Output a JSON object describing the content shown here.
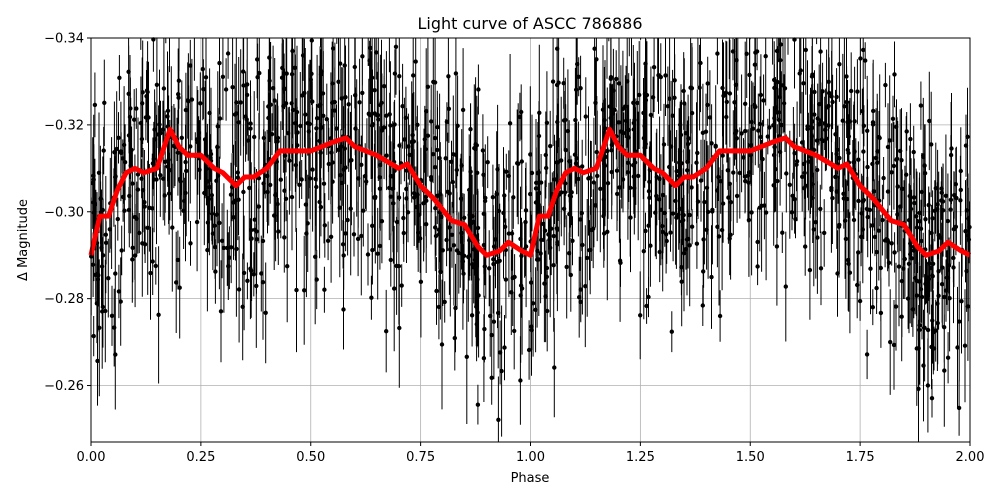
{
  "chart_data": {
    "type": "scatter",
    "title": "Light curve of ASCC 786886",
    "xlabel": "Phase",
    "ylabel": "Δ Magnitude",
    "xlim": [
      0.0,
      2.0
    ],
    "ylim": [
      -0.34,
      -0.247
    ],
    "y_inverted": true,
    "grid": true,
    "xticks": [
      "0.00",
      "0.25",
      "0.50",
      "0.75",
      "1.00",
      "1.25",
      "1.50",
      "1.75",
      "2.00"
    ],
    "yticks": [
      "−0.34",
      "−0.32",
      "−0.30",
      "−0.28",
      "−0.26"
    ],
    "series": [
      {
        "name": "observations",
        "style": "black points with error bars",
        "color": "#000000",
        "description": "Dense phase-folded photometry, scatter spanning roughly -0.34 to -0.25 magnitude across all phases"
      },
      {
        "name": "binned mean",
        "style": "thick red line",
        "color": "#ff0000",
        "x": [
          0.0,
          0.02,
          0.04,
          0.06,
          0.08,
          0.1,
          0.12,
          0.15,
          0.17,
          0.18,
          0.2,
          0.22,
          0.25,
          0.28,
          0.3,
          0.33,
          0.35,
          0.37,
          0.4,
          0.43,
          0.47,
          0.5,
          0.55,
          0.58,
          0.6,
          0.65,
          0.7,
          0.72,
          0.75,
          0.78,
          0.82,
          0.85,
          0.88,
          0.9,
          0.93,
          0.95,
          0.98,
          1.0,
          1.02,
          1.04,
          1.06,
          1.08,
          1.1,
          1.12,
          1.15,
          1.17,
          1.18,
          1.2,
          1.22,
          1.25,
          1.28,
          1.3,
          1.33,
          1.35,
          1.37,
          1.4,
          1.43,
          1.47,
          1.5,
          1.55,
          1.58,
          1.6,
          1.65,
          1.7,
          1.72,
          1.75,
          1.78,
          1.82,
          1.85,
          1.88,
          1.9,
          1.93,
          1.95,
          1.98,
          2.0
        ],
        "values": [
          -0.29,
          -0.299,
          -0.299,
          -0.305,
          -0.309,
          -0.31,
          -0.309,
          -0.31,
          -0.316,
          -0.319,
          -0.315,
          -0.313,
          -0.313,
          -0.31,
          -0.309,
          -0.306,
          -0.308,
          -0.308,
          -0.31,
          -0.314,
          -0.314,
          -0.314,
          -0.316,
          -0.317,
          -0.315,
          -0.313,
          -0.31,
          -0.311,
          -0.306,
          -0.303,
          -0.298,
          -0.297,
          -0.292,
          -0.29,
          -0.291,
          -0.293,
          -0.291,
          -0.29,
          -0.299,
          -0.299,
          -0.305,
          -0.309,
          -0.31,
          -0.309,
          -0.31,
          -0.316,
          -0.319,
          -0.315,
          -0.313,
          -0.313,
          -0.31,
          -0.309,
          -0.306,
          -0.308,
          -0.308,
          -0.31,
          -0.314,
          -0.314,
          -0.314,
          -0.316,
          -0.317,
          -0.315,
          -0.313,
          -0.31,
          -0.311,
          -0.306,
          -0.303,
          -0.298,
          -0.297,
          -0.292,
          -0.29,
          -0.291,
          -0.293,
          -0.291,
          -0.29
        ]
      }
    ]
  }
}
